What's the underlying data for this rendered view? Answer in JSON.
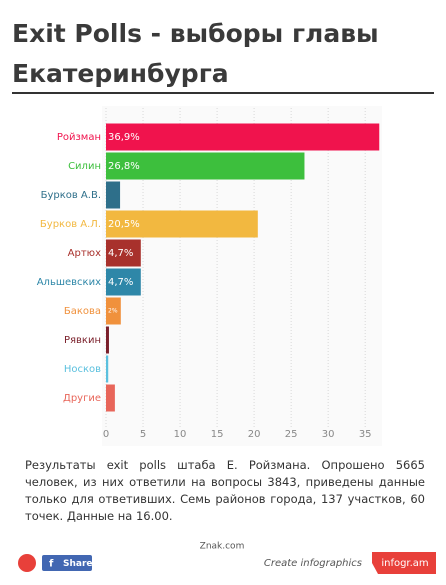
{
  "chart_data": {
    "type": "barh",
    "title": "Exit Polls - выборы главы Екатеринбурга",
    "categories": [
      "Ройзман",
      "Силин",
      "Бурков А.В.",
      "Бурков А.Л.",
      "Артюх",
      "Альшевских",
      "Бакова",
      "Рявкин",
      "Носков",
      "Другие"
    ],
    "values": [
      36.9,
      26.8,
      1.9,
      20.5,
      4.7,
      4.7,
      2,
      0.4,
      0.3,
      1.2
    ],
    "value_labels": [
      "36,9%",
      "26,8%",
      null,
      "20,5%",
      "4,7%",
      "4,7%",
      "2%",
      null,
      null,
      null
    ],
    "colors": [
      "#f0134d",
      "#3dbf3d",
      "#2e6f8a",
      "#f2b840",
      "#a8312c",
      "#2e87a8",
      "#f0913c",
      "#7a1f2a",
      "#5bc0de",
      "#e8665a"
    ],
    "xlim": [
      0,
      37
    ],
    "xticks": [
      0,
      5,
      10,
      15,
      20,
      25,
      30,
      35
    ],
    "grid": true,
    "description": "Результаты exit polls штаба Е. Ройзмана. Опрошено 5665 человек, из них ответили на вопросы 3843, приведены данные только для ответивших. Семь районов города, 137 участков, 60 точек. Данные на 16.00.",
    "source": "Znak.com"
  },
  "footer": {
    "share": "Share",
    "create": "Create infographics",
    "brand": "infogr.am"
  }
}
